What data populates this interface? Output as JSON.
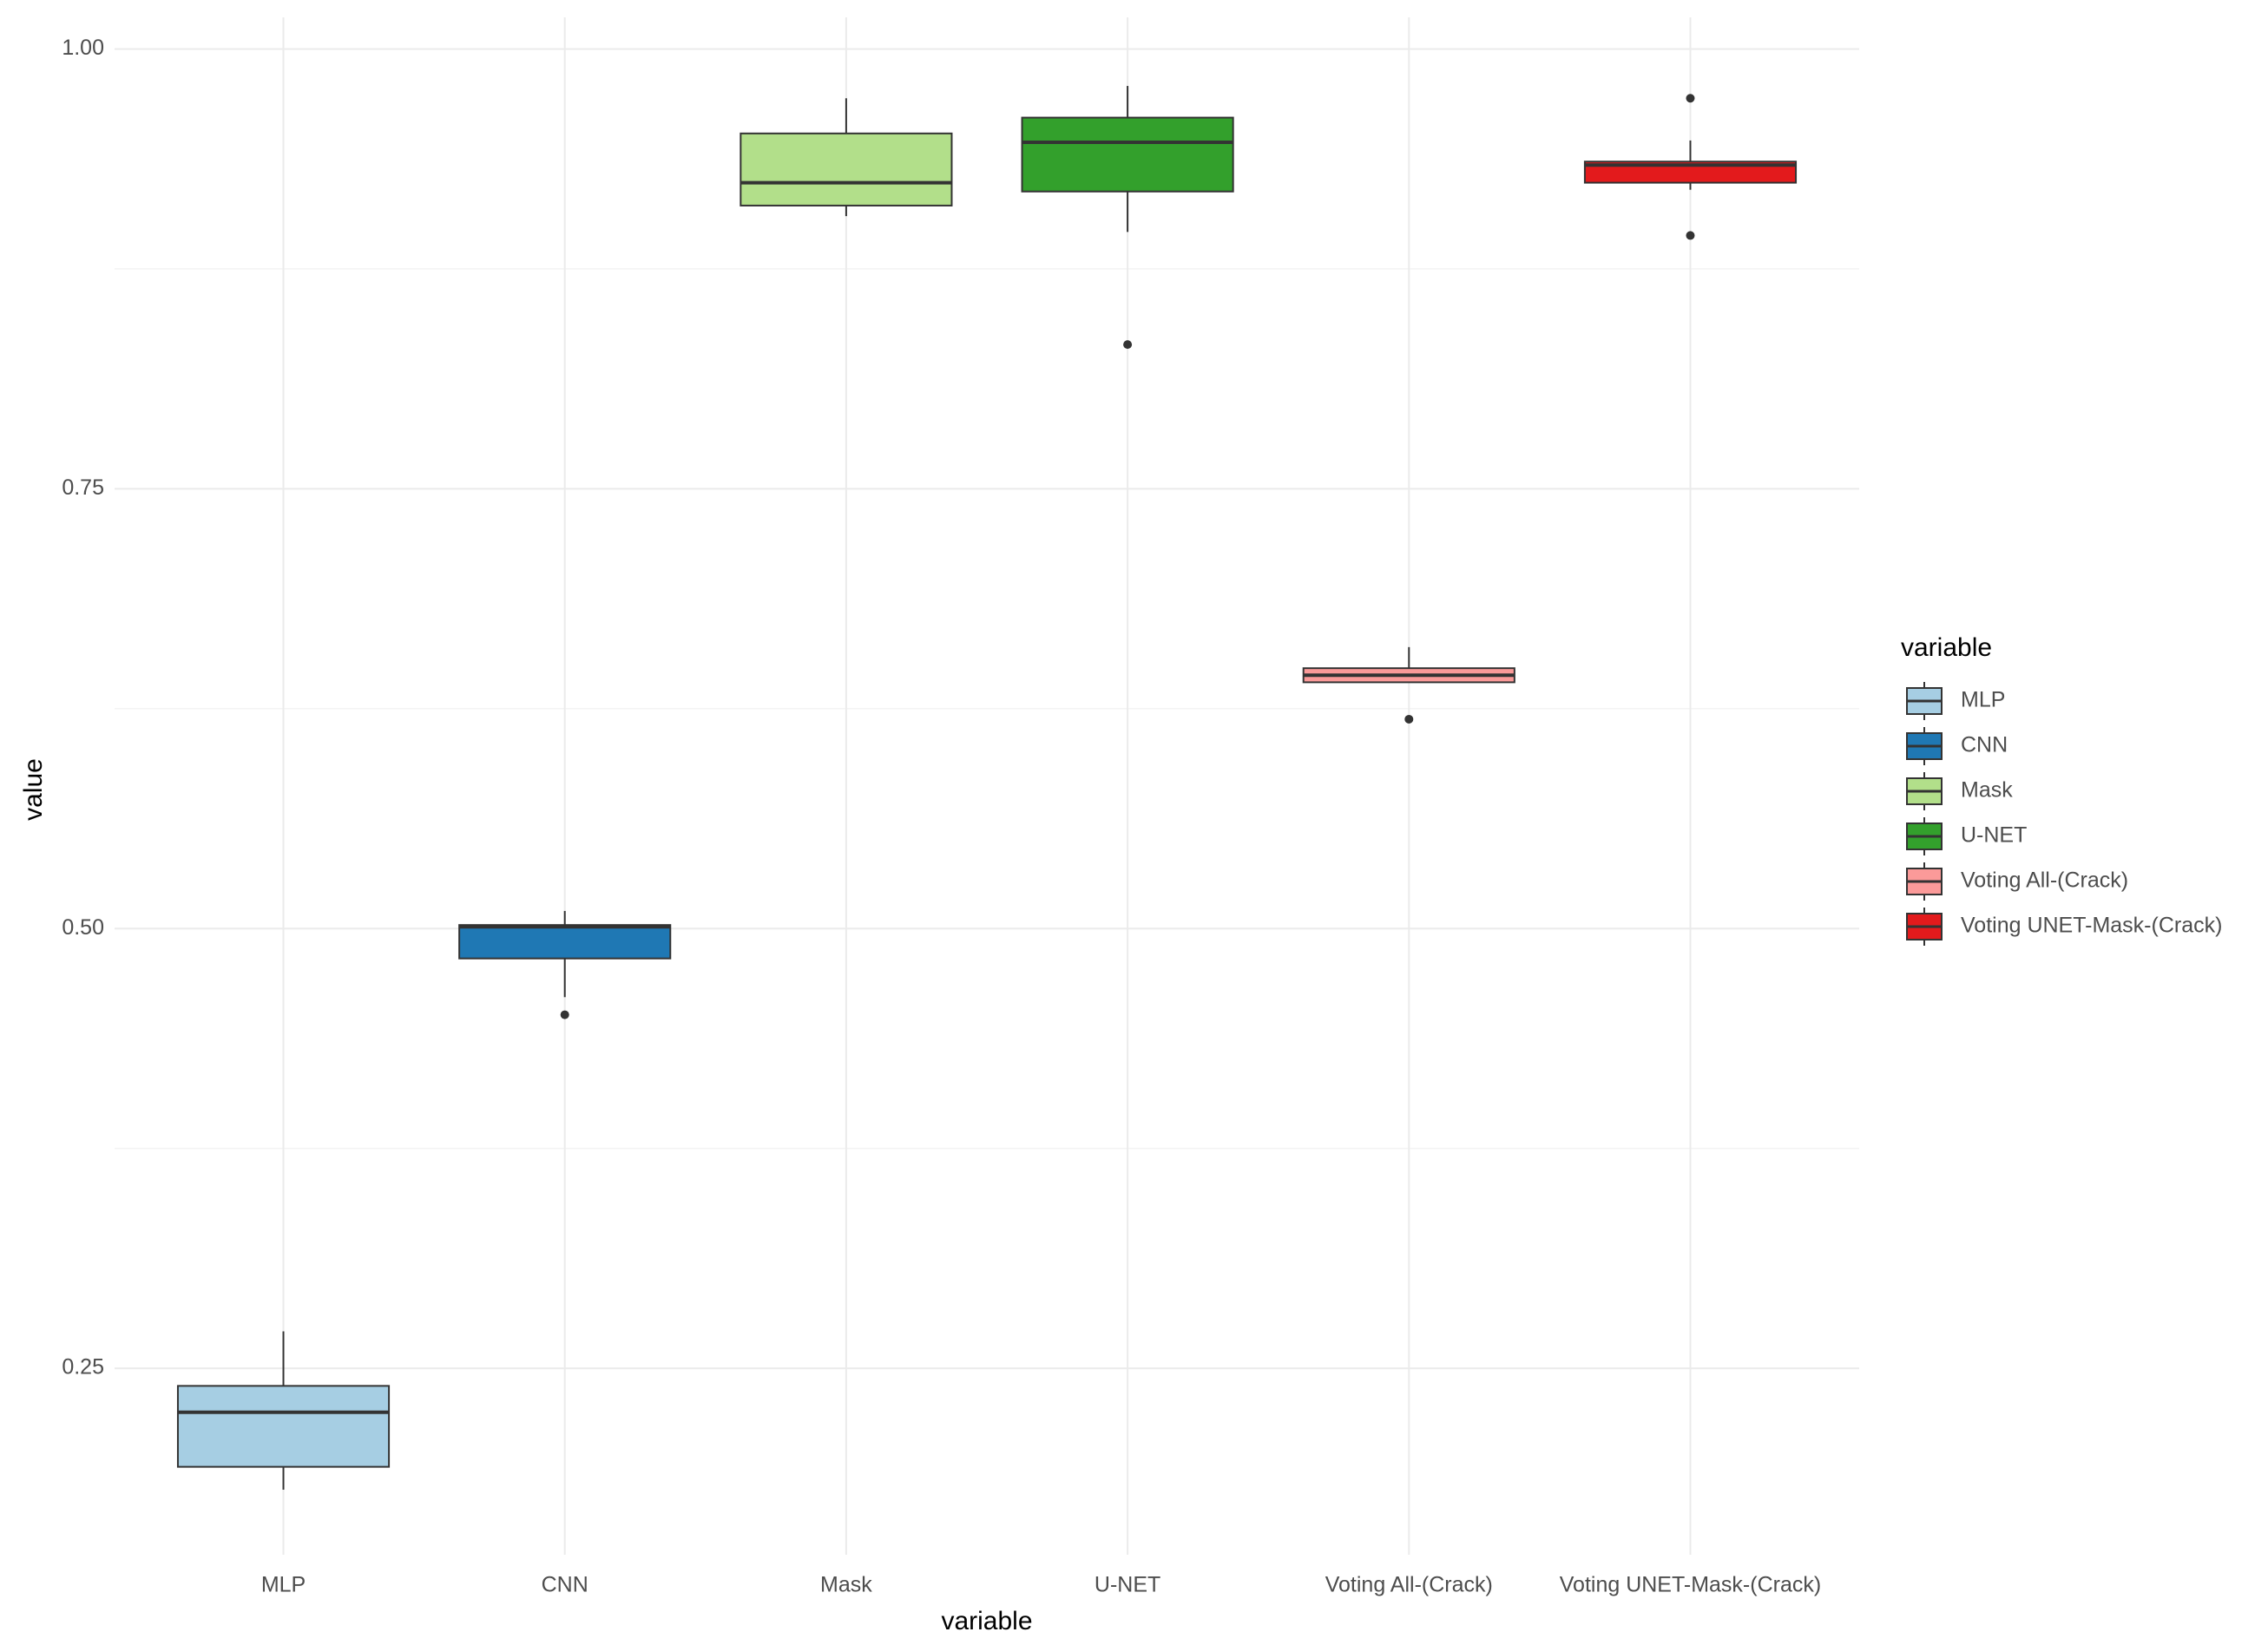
{
  "chart_data": {
    "type": "boxplot",
    "x_label": "variable",
    "y_label": "value",
    "legend_title": "variable",
    "categories": [
      "MLP",
      "CNN",
      "Mask",
      "U-NET",
      "Voting All-(Crack)",
      "Voting UNET-Mask-(Crack)"
    ],
    "series": [
      {
        "name": "MLP",
        "color": "#A6CEE3",
        "min": 0.181,
        "q1": 0.194,
        "median": 0.225,
        "q3": 0.24,
        "max": 0.271,
        "outliers": []
      },
      {
        "name": "CNN",
        "color": "#1F78B4",
        "min": 0.461,
        "q1": 0.483,
        "median": 0.501,
        "q3": 0.502,
        "max": 0.51,
        "outliers": [
          0.451
        ]
      },
      {
        "name": "Mask",
        "color": "#B2DF8A",
        "min": 0.905,
        "q1": 0.911,
        "median": 0.924,
        "q3": 0.952,
        "max": 0.972,
        "outliers": []
      },
      {
        "name": "U-NET",
        "color": "#33A02C",
        "min": 0.896,
        "q1": 0.919,
        "median": 0.947,
        "q3": 0.961,
        "max": 0.979,
        "outliers": [
          0.832
        ]
      },
      {
        "name": "Voting All-(Crack)",
        "color": "#FB9A99",
        "min": 0.64,
        "q1": 0.64,
        "median": 0.644,
        "q3": 0.648,
        "max": 0.66,
        "outliers": [
          0.619
        ]
      },
      {
        "name": "Voting UNET-Mask-(Crack)",
        "color": "#E31A1C",
        "min": 0.92,
        "q1": 0.924,
        "median": 0.934,
        "q3": 0.936,
        "max": 0.948,
        "outliers": [
          0.972,
          0.894
        ]
      }
    ],
    "ylim": [
      0.144,
      1.018
    ],
    "yticks": [
      {
        "value": 1,
        "label": "1.00"
      },
      0.75,
      {
        "value": 0.5,
        "label": "0.50"
      },
      0.25
    ],
    "minor_yticks": [
      0.875,
      0.625,
      0.375
    ],
    "grid": true,
    "legend_position": "right"
  }
}
